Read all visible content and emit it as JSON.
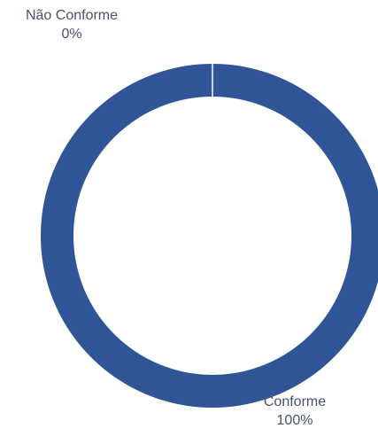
{
  "chart_data": {
    "type": "pie",
    "variant": "donut",
    "categories": [
      "Não Conforme",
      "Conforme"
    ],
    "values": [
      0,
      100
    ],
    "data_labels": [
      {
        "category": "Não Conforme",
        "percent": "0%"
      },
      {
        "category": "Conforme",
        "percent": "100%"
      }
    ],
    "colors": {
      "Conforme": "#2f5597",
      "Não Conforme": "#4472c4",
      "slice_border": "#ffffff",
      "label_text": "#44546a"
    },
    "title": "",
    "legend": "none"
  }
}
